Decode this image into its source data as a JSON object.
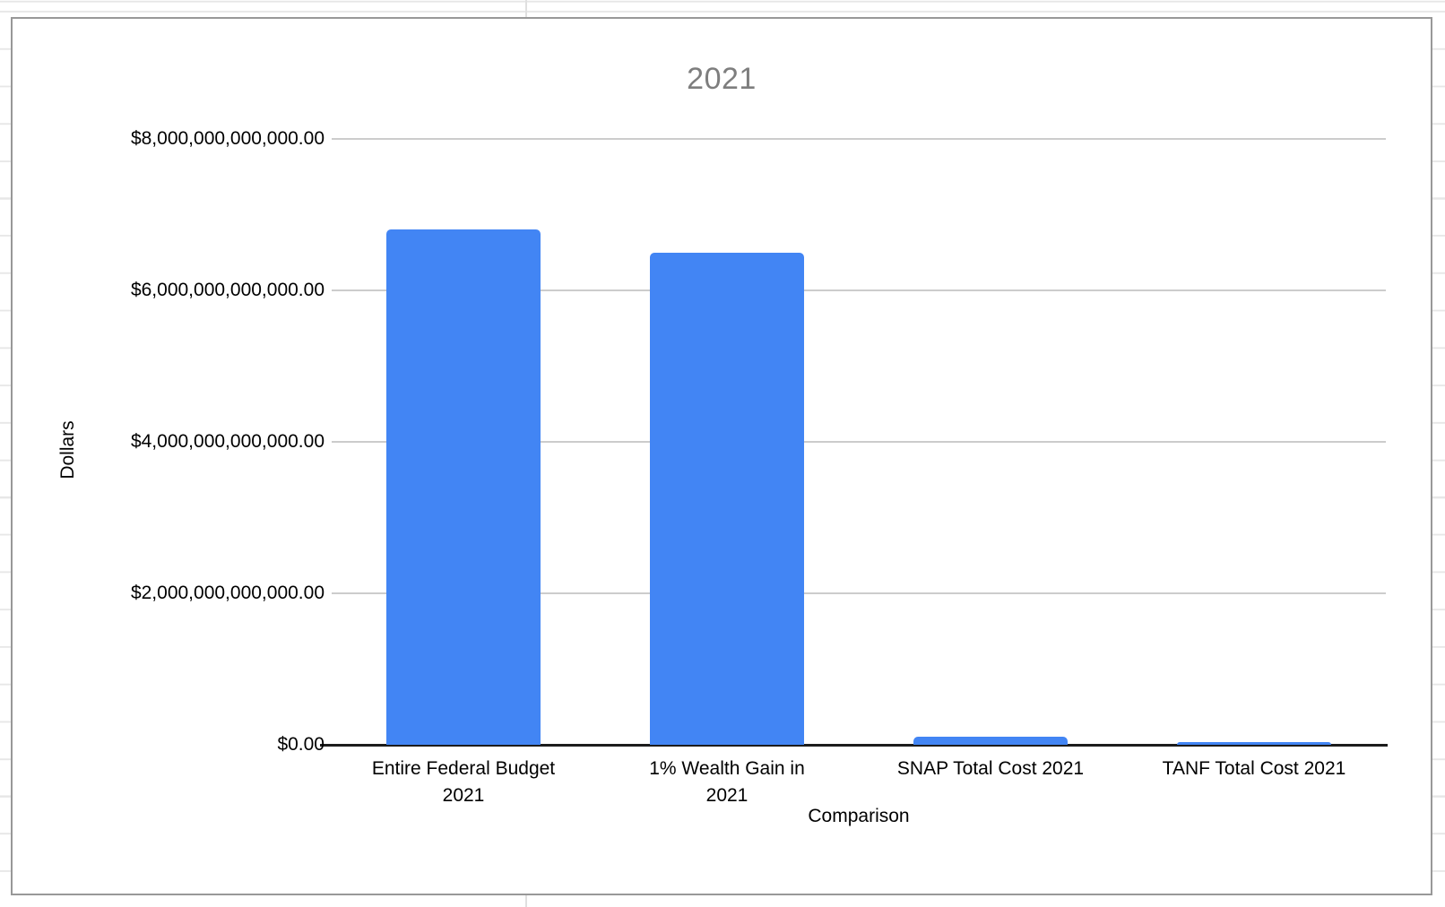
{
  "spreadsheet_background": {
    "row_line_color": "#e7e7e7",
    "column_line_color": "#e0e0e0"
  },
  "chart_style": {
    "frame_border_color": "#989898",
    "title_color": "#7e7e7e",
    "bar_color": "#4285f4",
    "gridline_color": "#cccccc",
    "axis_line_color": "#1c1c1c"
  },
  "chart_data": {
    "type": "bar",
    "title": "2021",
    "xlabel": "Comparison",
    "ylabel": "Dollars",
    "categories": [
      "Entire Federal Budget 2021",
      "1% Wealth Gain in 2021",
      "SNAP Total Cost 2021",
      "TANF Total Cost 2021"
    ],
    "category_label_lines": [
      "Entire Federal Budget\n2021",
      "1% Wealth Gain in\n2021",
      "SNAP Total Cost 2021",
      "TANF Total Cost 2021"
    ],
    "values": [
      6800000000000,
      6500000000000,
      110000000000,
      40000000000
    ],
    "ylim": [
      0,
      8000000000000
    ],
    "yticks": [
      {
        "value": 0,
        "label": "$0.00"
      },
      {
        "value": 2000000000000,
        "label": "$2,000,000,000,000.00"
      },
      {
        "value": 4000000000000,
        "label": "$4,000,000,000,000.00"
      },
      {
        "value": 6000000000000,
        "label": "$6,000,000,000,000.00"
      },
      {
        "value": 8000000000000,
        "label": "$8,000,000,000,000.00"
      }
    ],
    "grid": true,
    "legend": "none"
  }
}
